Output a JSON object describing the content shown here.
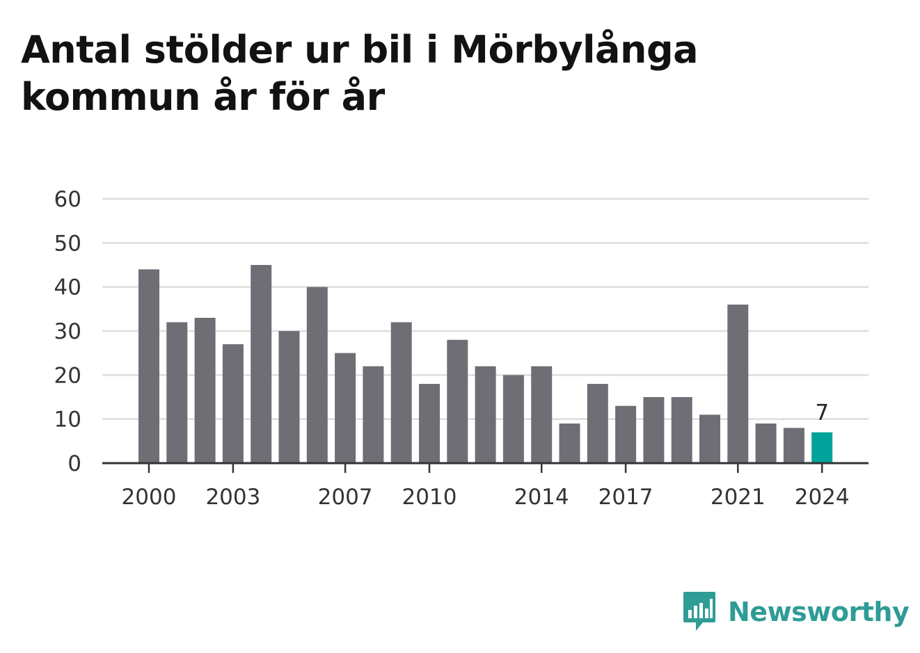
{
  "title": "Antal stölder ur bil i Mörbylånga kommun år för år",
  "brand": {
    "name": "Newsworthy",
    "icon": "newsworthy-bar-chart-bubble-icon",
    "color": "#2f9c96"
  },
  "chart_data": {
    "type": "bar",
    "categories": [
      2000,
      2001,
      2002,
      2003,
      2004,
      2005,
      2006,
      2007,
      2008,
      2009,
      2010,
      2011,
      2012,
      2013,
      2014,
      2015,
      2016,
      2017,
      2018,
      2019,
      2020,
      2021,
      2022,
      2023,
      2024
    ],
    "values": [
      44,
      32,
      33,
      27,
      45,
      30,
      40,
      25,
      22,
      32,
      18,
      28,
      22,
      20,
      22,
      9,
      18,
      13,
      15,
      15,
      11,
      36,
      9,
      8,
      7
    ],
    "x_tick_labels": [
      "2000",
      "2003",
      "2007",
      "2010",
      "2014",
      "2017",
      "2021",
      "2024"
    ],
    "y_ticks": [
      0,
      10,
      20,
      30,
      40,
      50,
      60
    ],
    "ylim": [
      0,
      60
    ],
    "grid": true,
    "bar_color": "#6f6e75",
    "highlight": {
      "category": 2024,
      "color": "#00a39a",
      "label": "7"
    },
    "xlabel": "",
    "ylabel": ""
  }
}
